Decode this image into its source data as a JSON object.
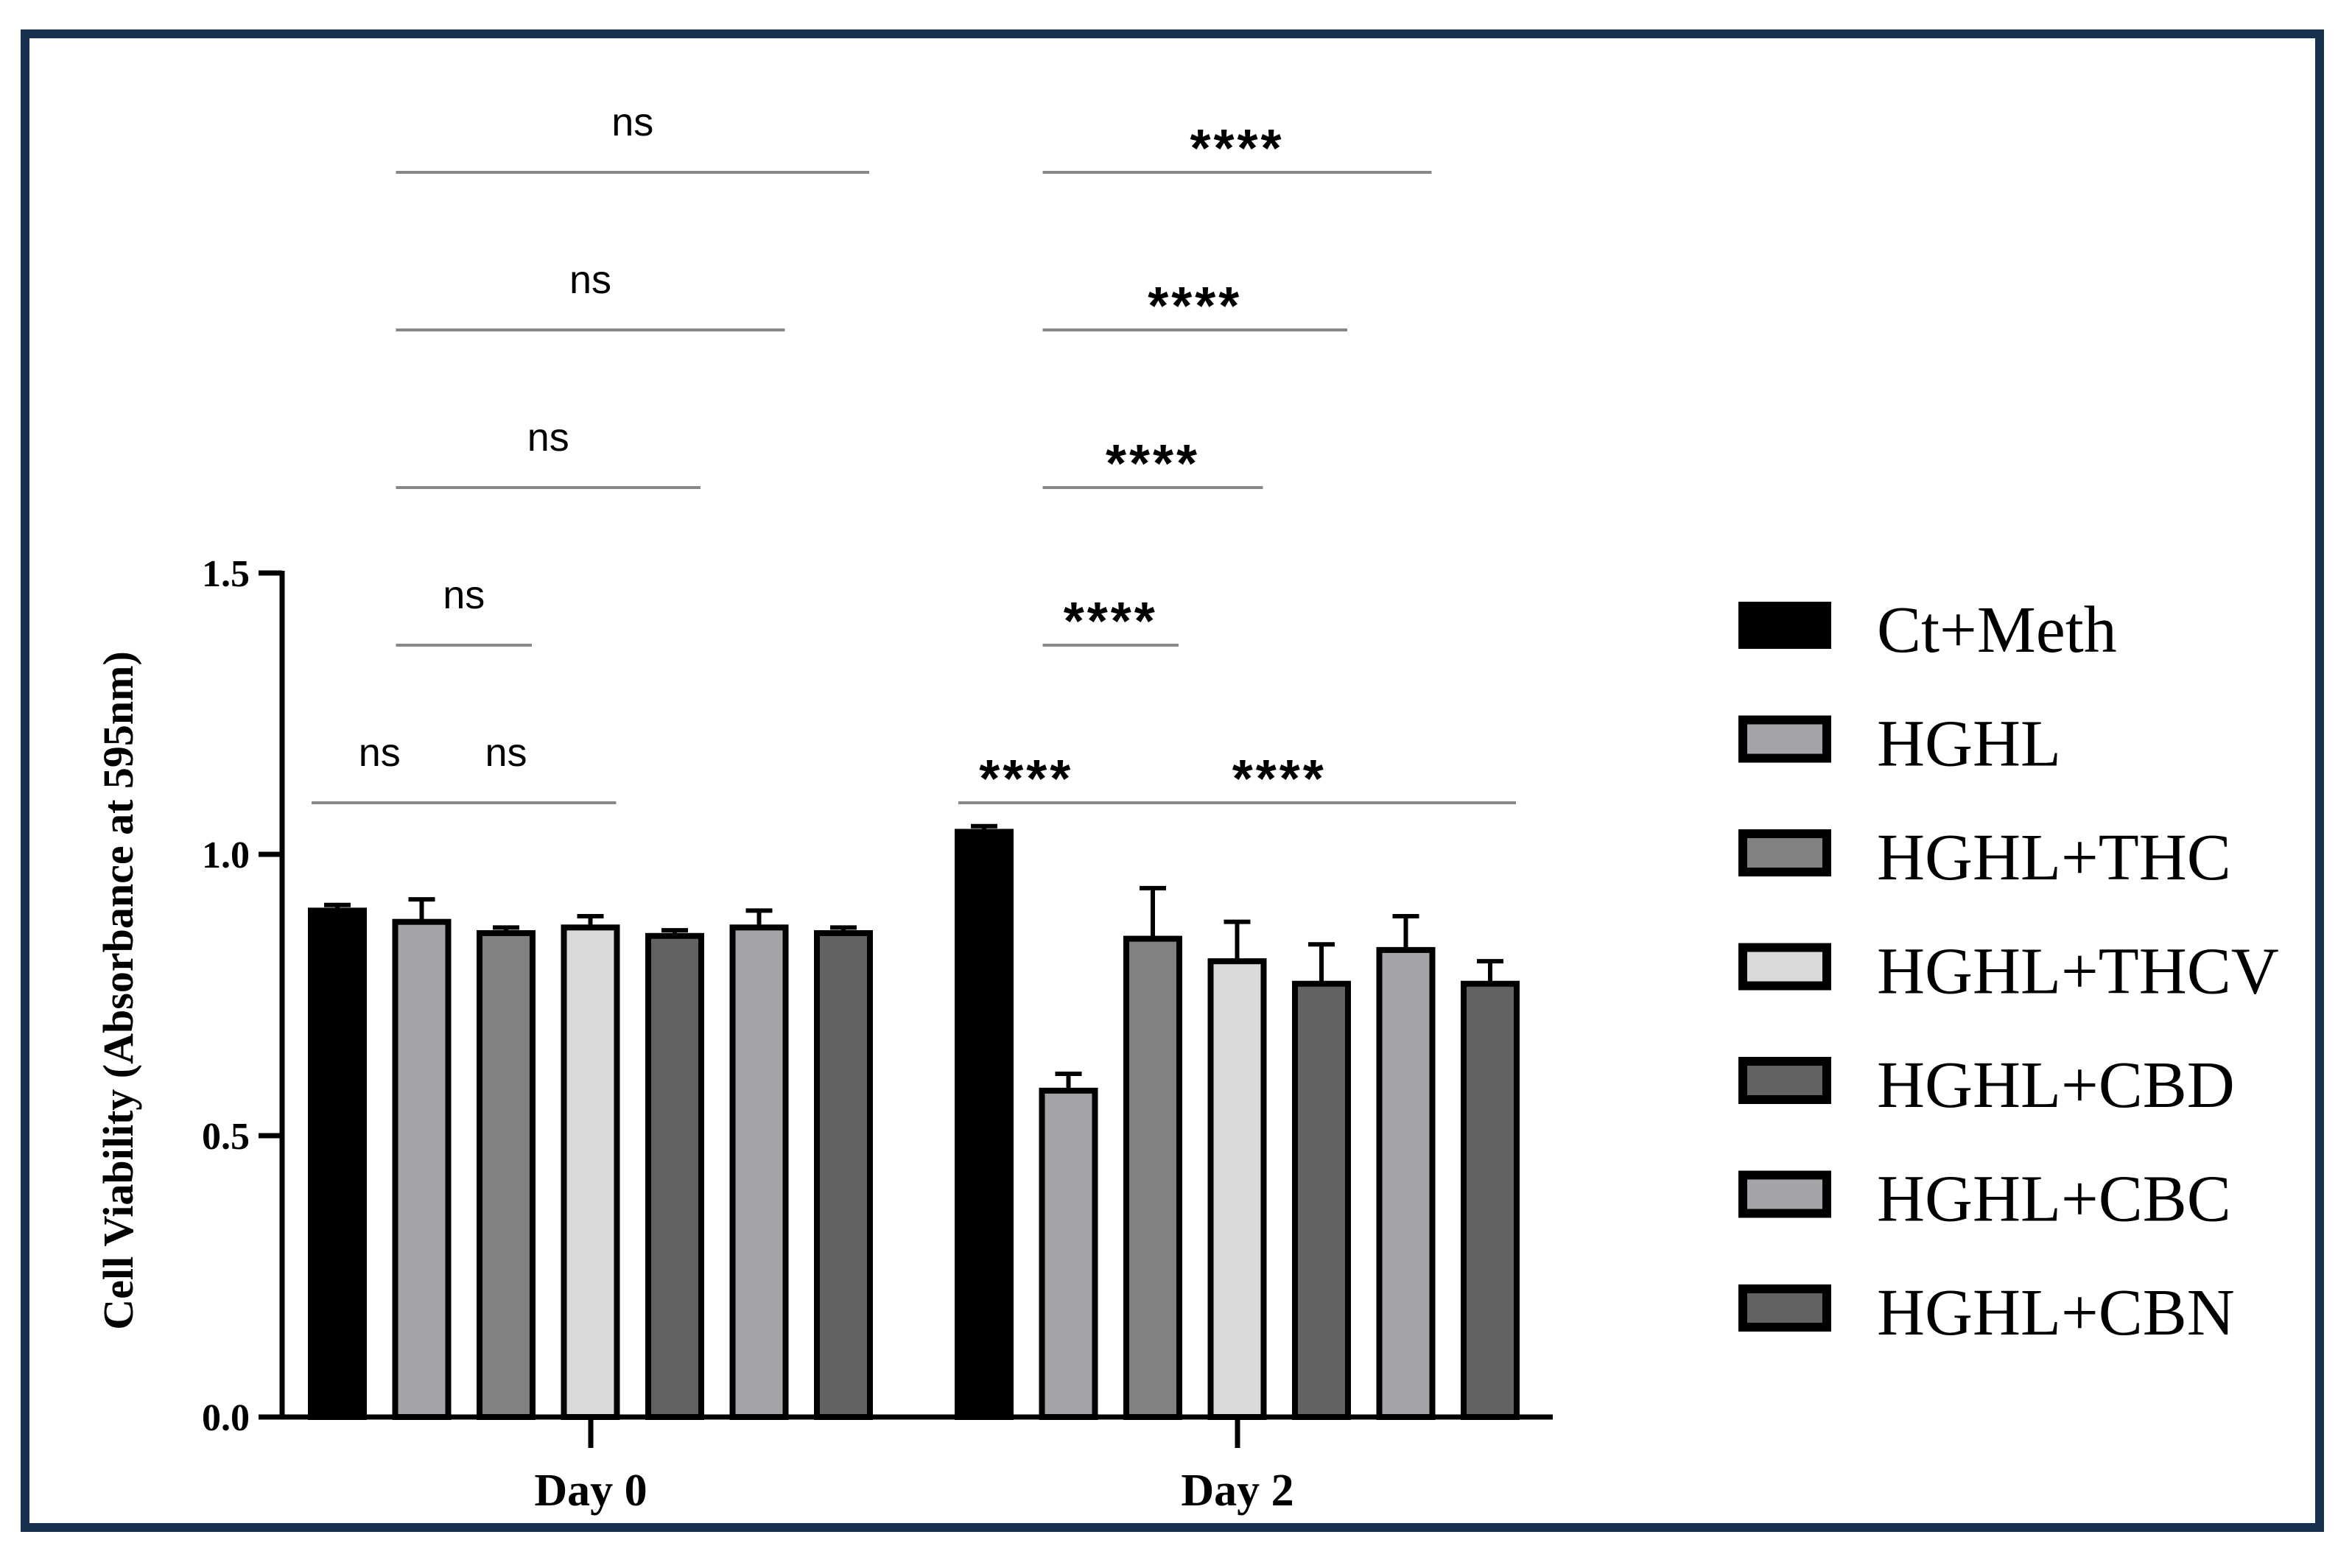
{
  "chart_data": {
    "type": "bar",
    "ylabel": "Cell Viability (Absorbance at 595nm)",
    "ylim": [
      0,
      1.5
    ],
    "yticks": [
      "0.0",
      "0.5",
      "1.0",
      "1.5"
    ],
    "categories": [
      "Day 0",
      "Day 2"
    ],
    "series": [
      {
        "name": "Ct+Meth",
        "color": "#000000",
        "values": [
          0.9,
          1.04
        ],
        "errors": [
          0.01,
          0.01
        ]
      },
      {
        "name": "HGHL",
        "color": "#a3a3a8",
        "values": [
          0.88,
          0.58
        ],
        "errors": [
          0.04,
          0.03
        ]
      },
      {
        "name": "HGHL+THC",
        "color": "#818181",
        "values": [
          0.86,
          0.85
        ],
        "errors": [
          0.01,
          0.09
        ]
      },
      {
        "name": "HGHL+THCV",
        "color": "#d9d9d9",
        "values": [
          0.87,
          0.81
        ],
        "errors": [
          0.02,
          0.07
        ]
      },
      {
        "name": "HGHL+CBD",
        "color": "#626262",
        "values": [
          0.855,
          0.77
        ],
        "errors": [
          0.01,
          0.07
        ]
      },
      {
        "name": "HGHL+CBC",
        "color": "#a3a3a8",
        "values": [
          0.87,
          0.83
        ],
        "errors": [
          0.03,
          0.06
        ]
      },
      {
        "name": "HGHL+CBN",
        "color": "#626262",
        "values": [
          0.86,
          0.77
        ],
        "errors": [
          0.01,
          0.04
        ]
      }
    ],
    "annotations": [
      {
        "text": "ns",
        "group": 0,
        "from": 0,
        "to": 1,
        "level": 0
      },
      {
        "text": "ns",
        "group": 0,
        "from": 1,
        "to": 3,
        "level": 0
      },
      {
        "text": "ns",
        "group": 0,
        "from": 1,
        "to": 2,
        "level": 1
      },
      {
        "text": "ns",
        "group": 0,
        "from": 1,
        "to": 4,
        "level": 2
      },
      {
        "text": "ns",
        "group": 0,
        "from": 1,
        "to": 5,
        "level": 3
      },
      {
        "text": "ns",
        "group": 0,
        "from": 1,
        "to": 6,
        "level": 4
      },
      {
        "text": "****",
        "group": 1,
        "from": 0,
        "to": 1,
        "level": 0
      },
      {
        "text": "****",
        "group": 1,
        "from": 1,
        "to": 6,
        "level": 0
      },
      {
        "text": "****",
        "group": 1,
        "from": 1,
        "to": 2,
        "level": 1
      },
      {
        "text": "****",
        "group": 1,
        "from": 1,
        "to": 3,
        "level": 2
      },
      {
        "text": "****",
        "group": 1,
        "from": 1,
        "to": 4,
        "level": 3
      },
      {
        "text": "****",
        "group": 1,
        "from": 1,
        "to": 5,
        "level": 4
      }
    ]
  }
}
